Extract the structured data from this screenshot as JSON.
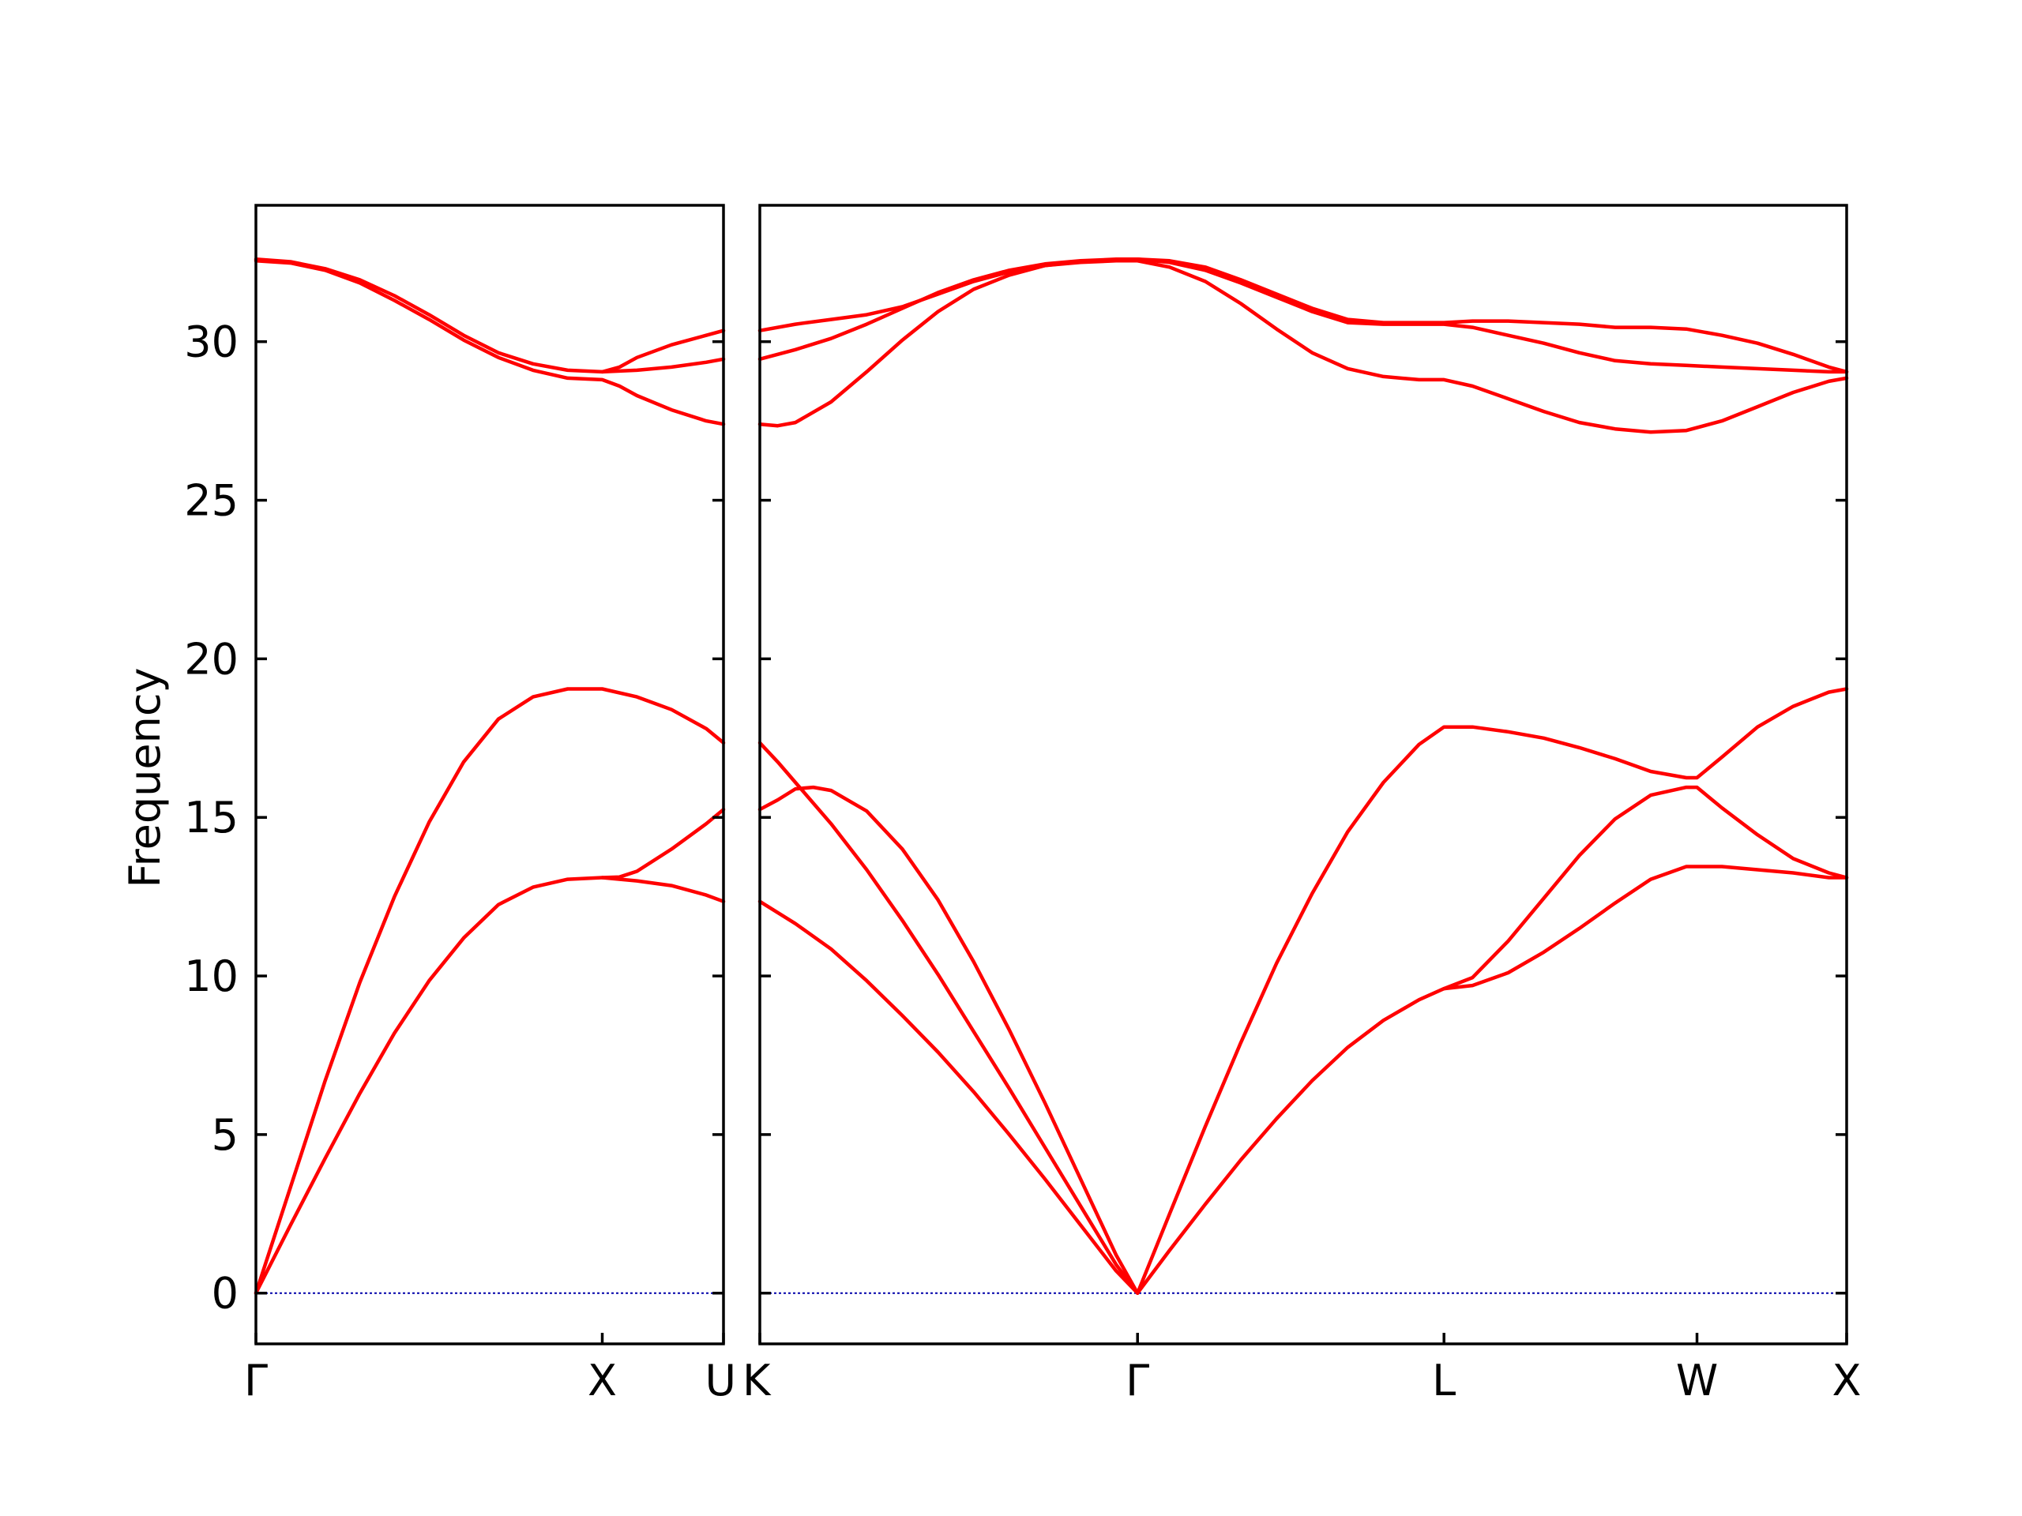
{
  "chart_data": {
    "type": "line",
    "ylabel": "Frequency",
    "ylim": [
      -1.6,
      34.3
    ],
    "yticks": [
      0,
      5,
      10,
      15,
      20,
      25,
      30
    ],
    "grid": false,
    "line_color": "#ff0000",
    "zero_line_color": "#0000aa",
    "panels": [
      {
        "name": "left",
        "xlim": [
          0,
          1.35
        ],
        "ticks": [
          {
            "x": 0,
            "label": "Γ"
          },
          {
            "x": 1.0,
            "label": "X"
          },
          {
            "x": 1.35,
            "label": "U"
          }
        ],
        "series": [
          {
            "x": [
              0,
              0.1,
              0.2,
              0.3,
              0.4,
              0.5,
              0.6,
              0.7,
              0.8,
              0.9,
              1.0,
              1.05,
              1.1,
              1.2,
              1.3,
              1.35
            ],
            "y": [
              0,
              2.15,
              4.25,
              6.3,
              8.2,
              9.85,
              11.2,
              12.25,
              12.8,
              13.05,
              13.1,
              13.12,
              13.3,
              14.0,
              14.8,
              15.25
            ]
          },
          {
            "x": [
              0,
              0.1,
              0.2,
              0.3,
              0.4,
              0.5,
              0.6,
              0.7,
              0.8,
              0.9,
              1.0,
              1.1,
              1.2,
              1.3,
              1.35
            ],
            "y": [
              0,
              3.35,
              6.7,
              9.8,
              12.5,
              14.85,
              16.75,
              18.1,
              18.8,
              19.05,
              19.05,
              18.8,
              18.4,
              17.8,
              17.35
            ]
          },
          {
            "x": [
              1.0,
              1.1,
              1.2,
              1.3,
              1.35
            ],
            "y": [
              13.1,
              13.0,
              12.85,
              12.55,
              12.35
            ]
          },
          {
            "x": [
              0,
              0.1,
              0.2,
              0.3,
              0.4,
              0.5,
              0.6,
              0.7,
              0.8,
              0.9,
              1.0,
              1.05,
              1.1,
              1.2,
              1.3,
              1.35
            ],
            "y": [
              32.55,
              32.48,
              32.25,
              31.85,
              31.3,
              30.7,
              30.05,
              29.5,
              29.1,
              28.85,
              28.8,
              28.6,
              28.3,
              27.85,
              27.5,
              27.4
            ]
          },
          {
            "x": [
              0,
              0.1,
              0.2,
              0.3,
              0.4,
              0.5,
              0.6,
              0.7,
              0.8,
              0.9,
              1.0,
              1.1,
              1.2,
              1.3,
              1.35
            ],
            "y": [
              32.6,
              32.52,
              32.3,
              31.95,
              31.45,
              30.85,
              30.2,
              29.65,
              29.3,
              29.1,
              29.05,
              29.1,
              29.2,
              29.35,
              29.45
            ]
          },
          {
            "x": [
              1.0,
              1.05,
              1.1,
              1.2,
              1.3,
              1.35
            ],
            "y": [
              29.05,
              29.2,
              29.5,
              29.9,
              30.2,
              30.35
            ]
          }
        ]
      },
      {
        "name": "right",
        "xlim": [
          0,
          3.05
        ],
        "ticks": [
          {
            "x": 0,
            "label": "K"
          },
          {
            "x": 1.06,
            "label": "Γ"
          },
          {
            "x": 1.92,
            "label": "L"
          },
          {
            "x": 2.63,
            "label": "W"
          },
          {
            "x": 3.05,
            "label": "X"
          }
        ],
        "series": [
          {
            "x": [
              0,
              0.1,
              0.2,
              0.3,
              0.4,
              0.5,
              0.6,
              0.7,
              0.8,
              0.9,
              1.0,
              1.06
            ],
            "y": [
              12.35,
              11.65,
              10.85,
              9.85,
              8.75,
              7.6,
              6.35,
              5.0,
              3.6,
              2.15,
              0.7,
              0
            ]
          },
          {
            "x": [
              0,
              0.05,
              0.1,
              0.2,
              0.3,
              0.4,
              0.5,
              0.6,
              0.7,
              0.8,
              0.9,
              1.0,
              1.06
            ],
            "y": [
              17.35,
              16.75,
              16.1,
              14.8,
              13.35,
              11.75,
              10.05,
              8.25,
              6.45,
              4.6,
              2.75,
              0.9,
              0
            ]
          },
          {
            "x": [
              0,
              0.05,
              0.1,
              0.15,
              0.2,
              0.3,
              0.4,
              0.5,
              0.6,
              0.7,
              0.8,
              0.9,
              1.0,
              1.06
            ],
            "y": [
              15.25,
              15.55,
              15.9,
              15.95,
              15.85,
              15.2,
              14.0,
              12.4,
              10.45,
              8.3,
              6.0,
              3.6,
              1.2,
              0
            ]
          },
          {
            "x": [
              1.06,
              1.15,
              1.25,
              1.35,
              1.45,
              1.55,
              1.65,
              1.75,
              1.85,
              1.92,
              2.0,
              2.1,
              2.2,
              2.3,
              2.4,
              2.5,
              2.6,
              2.63,
              2.7,
              2.8,
              2.9,
              3.0,
              3.05
            ],
            "y": [
              0,
              1.35,
              2.8,
              4.2,
              5.5,
              6.7,
              7.75,
              8.6,
              9.25,
              9.6,
              9.7,
              10.1,
              10.75,
              11.5,
              12.3,
              13.05,
              13.45,
              13.45,
              13.45,
              13.35,
              13.25,
              13.1,
              13.1
            ]
          },
          {
            "x": [
              1.06,
              1.15,
              1.25,
              1.35,
              1.45,
              1.55,
              1.65,
              1.75,
              1.85,
              1.92,
              2.0,
              2.1,
              2.2,
              2.3,
              2.4,
              2.5,
              2.6,
              2.63,
              2.7,
              2.8,
              2.9,
              3.0,
              3.05
            ],
            "y": [
              0,
              2.5,
              5.25,
              7.9,
              10.4,
              12.6,
              14.55,
              16.1,
              17.3,
              17.85,
              17.85,
              17.7,
              17.5,
              17.2,
              16.85,
              16.45,
              16.25,
              16.25,
              16.9,
              17.85,
              18.5,
              18.95,
              19.05
            ]
          },
          {
            "x": [
              1.92,
              2.0,
              2.1,
              2.2,
              2.3,
              2.4,
              2.5,
              2.6,
              2.63,
              2.7,
              2.8,
              2.9,
              3.0,
              3.05
            ],
            "y": [
              9.6,
              9.95,
              11.1,
              12.45,
              13.8,
              14.95,
              15.7,
              15.95,
              15.95,
              15.3,
              14.45,
              13.7,
              13.25,
              13.1
            ]
          },
          {
            "x": [
              0,
              0.05,
              0.1,
              0.2,
              0.3,
              0.4,
              0.5,
              0.6,
              0.7,
              0.8,
              0.9,
              1.0,
              1.06,
              1.15,
              1.25,
              1.35,
              1.45,
              1.55,
              1.65,
              1.75,
              1.85,
              1.92,
              2.0,
              2.1,
              2.2,
              2.3,
              2.4,
              2.5,
              2.6,
              2.7,
              2.8,
              2.9,
              3.0,
              3.05
            ],
            "y": [
              27.4,
              27.35,
              27.45,
              28.1,
              29.05,
              30.05,
              30.95,
              31.65,
              32.1,
              32.4,
              32.5,
              32.55,
              32.55,
              32.35,
              31.9,
              31.2,
              30.4,
              29.65,
              29.15,
              28.9,
              28.8,
              28.8,
              28.6,
              28.2,
              27.8,
              27.45,
              27.25,
              27.15,
              27.2,
              27.5,
              27.95,
              28.4,
              28.75,
              28.85
            ]
          },
          {
            "x": [
              0,
              0.1,
              0.2,
              0.3,
              0.4,
              0.5,
              0.6,
              0.7,
              0.8,
              0.9,
              1.0,
              1.06,
              1.15,
              1.25,
              1.35,
              1.45,
              1.55,
              1.65,
              1.75,
              1.85,
              1.92,
              2.0,
              2.1,
              2.2,
              2.3,
              2.4,
              2.5,
              2.6,
              2.7,
              2.8,
              2.9,
              3.0,
              3.05
            ],
            "y": [
              29.45,
              29.75,
              30.1,
              30.55,
              31.05,
              31.55,
              31.95,
              32.25,
              32.45,
              32.55,
              32.6,
              32.6,
              32.5,
              32.25,
              31.85,
              31.4,
              30.95,
              30.6,
              30.55,
              30.55,
              30.55,
              30.45,
              30.2,
              29.95,
              29.65,
              29.4,
              29.3,
              29.25,
              29.2,
              29.15,
              29.1,
              29.05,
              29.05
            ]
          },
          {
            "x": [
              0,
              0.1,
              0.2,
              0.3,
              0.4,
              0.5,
              0.6,
              0.7,
              0.8,
              0.9,
              1.0,
              1.06,
              1.15,
              1.25,
              1.35,
              1.45,
              1.55,
              1.65,
              1.75,
              1.85,
              1.92,
              2.0,
              2.1,
              2.2,
              2.3,
              2.4,
              2.5,
              2.6,
              2.7,
              2.8,
              2.9,
              3.0,
              3.05
            ],
            "y": [
              30.35,
              30.55,
              30.7,
              30.85,
              31.1,
              31.5,
              31.9,
              32.2,
              32.4,
              32.52,
              32.58,
              32.6,
              32.55,
              32.35,
              31.95,
              31.5,
              31.05,
              30.7,
              30.6,
              30.6,
              30.6,
              30.65,
              30.65,
              30.6,
              30.55,
              30.45,
              30.45,
              30.4,
              30.2,
              29.95,
              29.6,
              29.2,
              29.05
            ]
          }
        ]
      }
    ]
  }
}
